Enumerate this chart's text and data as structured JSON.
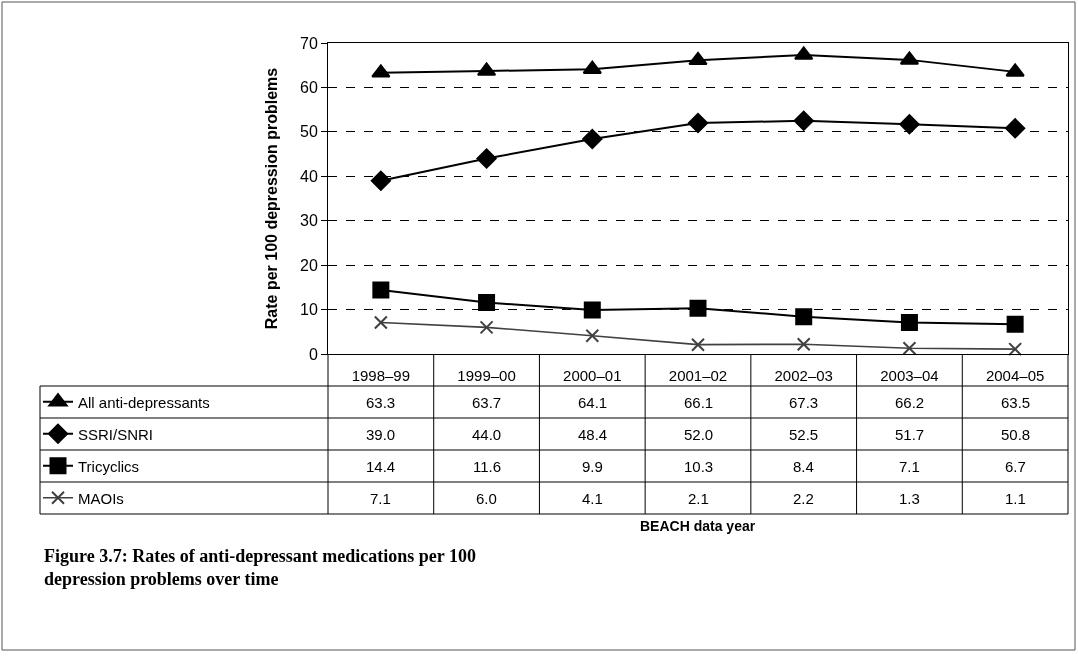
{
  "chart_data": {
    "type": "line",
    "ylabel": "Rate per 100 depression problems",
    "categories": [
      "1998–99",
      "1999–00",
      "2000–01",
      "2001–02",
      "2002–03",
      "2003–04",
      "2004–05"
    ],
    "series": [
      {
        "name": "All anti-depressants",
        "color": "#000000",
        "marker": "triangle",
        "values": [
          63.3,
          63.7,
          64.1,
          66.1,
          67.3,
          66.2,
          63.5
        ],
        "value_labels": [
          "63.3",
          "63.7",
          "64.1",
          "66.1",
          "67.3",
          "66.2",
          "63.5"
        ]
      },
      {
        "name": "SSRI/SNRI",
        "color": "#000000",
        "marker": "diamond",
        "values": [
          39.0,
          44.0,
          48.4,
          52.0,
          52.5,
          51.7,
          50.8
        ],
        "value_labels": [
          "39.0",
          "44.0",
          "48.4",
          "52.0",
          "52.5",
          "51.7",
          "50.8"
        ]
      },
      {
        "name": "Tricyclics",
        "color": "#000000",
        "marker": "square",
        "values": [
          14.4,
          11.6,
          9.9,
          10.3,
          8.4,
          7.1,
          6.7
        ],
        "value_labels": [
          "14.4",
          "11.6",
          "9.9",
          "10.3",
          "8.4",
          "7.1",
          "6.7"
        ]
      },
      {
        "name": "MAOIs",
        "color": "#404040",
        "marker": "cross",
        "values": [
          7.1,
          6.0,
          4.1,
          2.1,
          2.2,
          1.3,
          1.1
        ],
        "value_labels": [
          "7.1",
          "6.0",
          "4.1",
          "2.1",
          "2.2",
          "1.3",
          "1.1"
        ]
      }
    ],
    "ylim": [
      0,
      70
    ],
    "yticks": [
      0,
      10,
      20,
      30,
      40,
      50,
      60,
      70
    ],
    "grid": "y",
    "legend": "bottom left",
    "line_style": "solid",
    "annotations": [
      "BEACH data year",
      "Figure 3.7: Rates of anti-depressant medications per 100 depression problems over time"
    ]
  }
}
